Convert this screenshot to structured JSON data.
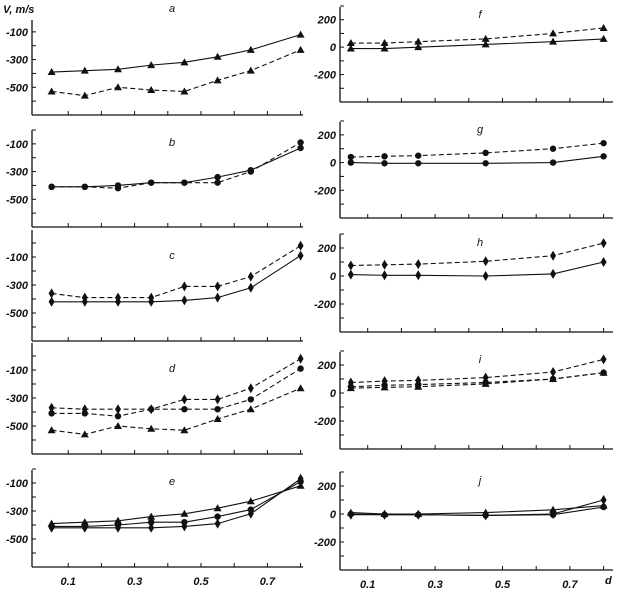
{
  "chart_data": {
    "type": "line",
    "ylabel": "V, m/s",
    "xlabel": "d",
    "grid": false,
    "x_tick_labels": [
      "0.1",
      "0.3",
      "0.5",
      "0.7"
    ],
    "left_y_tick_labels": [
      "-100",
      "-300",
      "-500"
    ],
    "right_y_tick_labels": [
      "200",
      "0",
      "-200"
    ],
    "panels": [
      {
        "label": "a",
        "x": [
          0.05,
          0.15,
          0.25,
          0.35,
          0.45,
          0.55,
          0.65,
          0.8
        ],
        "ylim": [
          -700,
          0
        ],
        "series": [
          {
            "marker": "triangle",
            "style": "solid",
            "values": [
              -390,
              -380,
              -370,
              -340,
              -320,
              -280,
              -230,
              -120
            ]
          },
          {
            "marker": "triangle",
            "style": "dashed",
            "values": [
              -530,
              -560,
              -500,
              -520,
              -530,
              -450,
              -380,
              -230
            ]
          }
        ]
      },
      {
        "label": "b",
        "x": [
          0.05,
          0.15,
          0.25,
          0.35,
          0.45,
          0.55,
          0.65,
          0.8
        ],
        "ylim": [
          -700,
          0
        ],
        "series": [
          {
            "marker": "circle",
            "style": "solid",
            "values": [
              -410,
              -410,
              -400,
              -380,
              -380,
              -340,
              -290,
              -130
            ]
          },
          {
            "marker": "circle",
            "style": "dashed",
            "values": [
              -410,
              -410,
              -420,
              -380,
              -380,
              -380,
              -300,
              -90
            ]
          }
        ]
      },
      {
        "label": "c",
        "x": [
          0.05,
          0.15,
          0.25,
          0.35,
          0.45,
          0.55,
          0.65,
          0.8
        ],
        "ylim": [
          -700,
          0
        ],
        "series": [
          {
            "marker": "diamond",
            "style": "dashed",
            "values": [
              -360,
              -390,
              -390,
              -390,
              -310,
              -310,
              -240,
              -20
            ]
          },
          {
            "marker": "diamond",
            "style": "solid",
            "values": [
              -420,
              -420,
              -420,
              -420,
              -410,
              -390,
              -320,
              -90
            ]
          }
        ]
      },
      {
        "label": "d",
        "x": [
          0.05,
          0.15,
          0.25,
          0.35,
          0.45,
          0.55,
          0.65,
          0.8
        ],
        "ylim": [
          -700,
          0
        ],
        "series": [
          {
            "marker": "diamond",
            "style": "dashed",
            "values": [
              -370,
              -380,
              -380,
              -380,
              -310,
              -310,
              -230,
              -20
            ]
          },
          {
            "marker": "circle",
            "style": "dashed",
            "values": [
              -410,
              -410,
              -430,
              -380,
              -380,
              -380,
              -310,
              -90
            ]
          },
          {
            "marker": "triangle",
            "style": "dashed",
            "values": [
              -530,
              -560,
              -500,
              -520,
              -530,
              -450,
              -380,
              -230
            ]
          }
        ]
      },
      {
        "label": "e",
        "x": [
          0.05,
          0.15,
          0.25,
          0.35,
          0.45,
          0.55,
          0.65,
          0.8
        ],
        "ylim": [
          -700,
          0
        ],
        "series": [
          {
            "marker": "triangle",
            "style": "solid",
            "values": [
              -390,
              -380,
              -370,
              -340,
              -320,
              -280,
              -230,
              -120
            ]
          },
          {
            "marker": "circle",
            "style": "solid",
            "values": [
              -410,
              -410,
              -400,
              -380,
              -380,
              -340,
              -290,
              -90
            ]
          },
          {
            "marker": "diamond",
            "style": "solid",
            "values": [
              -420,
              -420,
              -420,
              -420,
              -410,
              -390,
              -320,
              -70
            ]
          }
        ]
      },
      {
        "label": "f",
        "x": [
          0.05,
          0.15,
          0.25,
          0.45,
          0.65,
          0.8
        ],
        "ylim": [
          -400,
          300
        ],
        "series": [
          {
            "marker": "triangle",
            "style": "dashed",
            "values": [
              30,
              30,
              40,
              60,
              100,
              140
            ]
          },
          {
            "marker": "triangle",
            "style": "solid",
            "values": [
              -10,
              -10,
              0,
              20,
              40,
              60
            ]
          }
        ]
      },
      {
        "label": "g",
        "x": [
          0.05,
          0.15,
          0.25,
          0.45,
          0.65,
          0.8
        ],
        "ylim": [
          -400,
          300
        ],
        "series": [
          {
            "marker": "circle",
            "style": "dashed",
            "values": [
              40,
              45,
              50,
              70,
              100,
              140
            ]
          },
          {
            "marker": "circle",
            "style": "solid",
            "values": [
              0,
              -5,
              -5,
              -5,
              0,
              45
            ]
          }
        ]
      },
      {
        "label": "h",
        "x": [
          0.05,
          0.15,
          0.25,
          0.45,
          0.65,
          0.8
        ],
        "ylim": [
          -400,
          300
        ],
        "series": [
          {
            "marker": "diamond",
            "style": "dashed",
            "values": [
              75,
              80,
              85,
              105,
              145,
              235
            ]
          },
          {
            "marker": "diamond",
            "style": "solid",
            "values": [
              10,
              5,
              5,
              0,
              15,
              100
            ]
          }
        ]
      },
      {
        "label": "i",
        "x": [
          0.05,
          0.15,
          0.25,
          0.45,
          0.65,
          0.8
        ],
        "ylim": [
          -400,
          300
        ],
        "series": [
          {
            "marker": "diamond",
            "style": "dashed",
            "values": [
              75,
              85,
              90,
              110,
              150,
              240
            ]
          },
          {
            "marker": "circle",
            "style": "dashed",
            "values": [
              45,
              55,
              60,
              75,
              100,
              145
            ]
          },
          {
            "marker": "triangle",
            "style": "dashed",
            "values": [
              35,
              40,
              45,
              65,
              100,
              145
            ]
          }
        ]
      },
      {
        "label": "j",
        "x": [
          0.05,
          0.15,
          0.25,
          0.45,
          0.65,
          0.8
        ],
        "ylim": [
          -400,
          300
        ],
        "series": [
          {
            "marker": "triangle",
            "style": "solid",
            "values": [
              10,
              0,
              0,
              10,
              30,
              60
            ]
          },
          {
            "marker": "circle",
            "style": "solid",
            "values": [
              0,
              -5,
              -5,
              -10,
              -5,
              50
            ]
          },
          {
            "marker": "diamond",
            "style": "solid",
            "values": [
              -5,
              -5,
              -5,
              -10,
              0,
              100
            ]
          }
        ]
      }
    ]
  }
}
